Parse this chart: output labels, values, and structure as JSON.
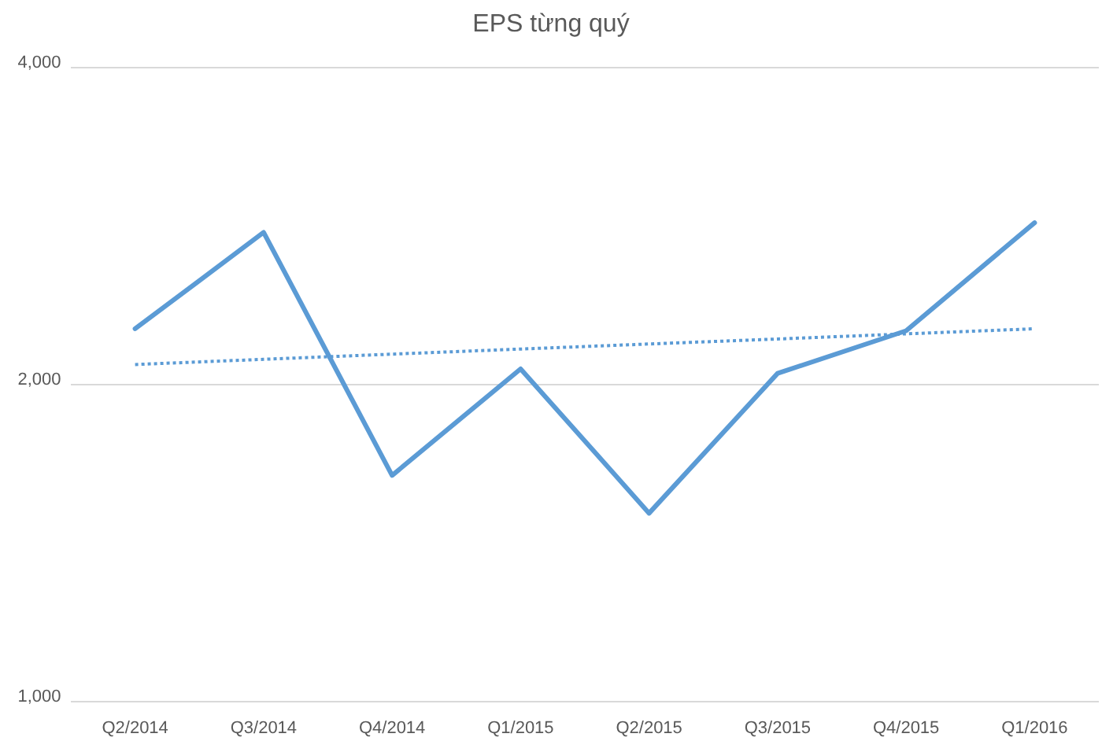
{
  "chart_data": {
    "type": "line",
    "title": "EPS từng quý",
    "categories": [
      "Q2/2014",
      "Q3/2014",
      "Q4/2014",
      "Q1/2015",
      "Q2/2015",
      "Q3/2015",
      "Q4/2015",
      "Q1/2016"
    ],
    "series": [
      {
        "color": "#5b9bd5",
        "values": [
          2260,
          2790,
          1640,
          2070,
          1510,
          2050,
          2250,
          2850
        ]
      },
      {
        "color": "#5b9bd5",
        "line_style": "dotted",
        "values": [
          2090,
          2114,
          2138,
          2162,
          2186,
          2210,
          2235,
          2260
        ]
      }
    ],
    "log": true,
    "ylim": [
      1000,
      4000
    ],
    "yticks": [
      {
        "value": 1000,
        "label": "1,000"
      },
      {
        "value": 2000,
        "label": "2,000"
      },
      {
        "value": 4000,
        "label": "4,000"
      }
    ],
    "grid": "y"
  }
}
